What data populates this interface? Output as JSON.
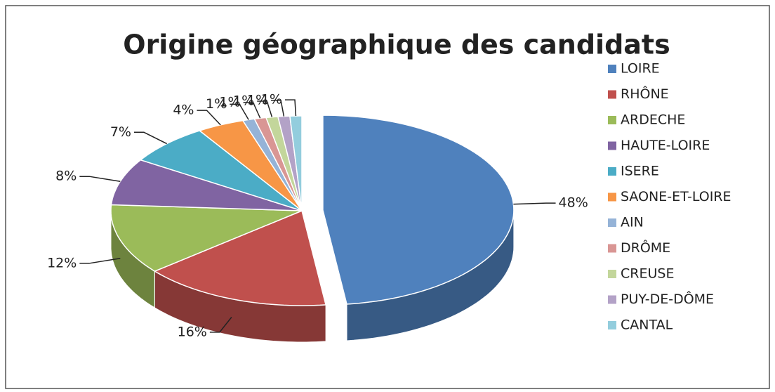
{
  "chart_data": {
    "type": "pie",
    "title": "Origine géographique des candidats",
    "categories": [
      "LOIRE",
      "RHÔNE",
      "ARDECHE",
      "HAUTE-LOIRE",
      "ISERE",
      "SAONE-ET-LOIRE",
      "AIN",
      "DRÔME",
      "CREUSE",
      "PUY-DE-DÔME",
      "CANTAL"
    ],
    "values": [
      48,
      16,
      12,
      8,
      7,
      4,
      1,
      1,
      1,
      1,
      1
    ],
    "value_labels": [
      "48%",
      "16%",
      "12%",
      "8%",
      "7%",
      "4%",
      "1%",
      "1%",
      "1%",
      "1%",
      "1%"
    ],
    "colors": [
      "#4f81bd",
      "#c0504d",
      "#9bbb59",
      "#8064a2",
      "#4bacc6",
      "#f79646",
      "#95b3d7",
      "#d99694",
      "#c3d69b",
      "#b3a2c7",
      "#93cddd"
    ],
    "legend": "right"
  }
}
